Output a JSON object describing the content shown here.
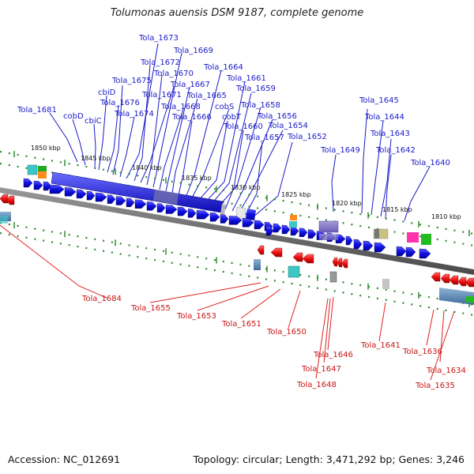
{
  "title": "Tolumonas auensis DSM 9187, complete genome",
  "footer": {
    "accession": "Accession: NC_012691",
    "summary": "Topology: circular; Length: 3,471,292 bp; Genes: 3,246"
  },
  "colors": {
    "upper_labels": "#1a1ac8",
    "lower_labels": "#c81414",
    "forward_genes": "#1414dc",
    "reverse_genes": "#e01414",
    "backbone": "#6e6e6e",
    "ticks": "#2e8b2e"
  },
  "ticks": [
    {
      "label": "1850 kbp"
    },
    {
      "label": "1845 kbp"
    },
    {
      "label": "1840 kbp"
    },
    {
      "label": "1835 kbp"
    },
    {
      "label": "1830 kbp"
    },
    {
      "label": "1825 kbp"
    },
    {
      "label": "1820 kbp"
    },
    {
      "label": "1815 kbp"
    },
    {
      "label": "1810 kbp"
    }
  ],
  "upper_labels": [
    "Tola_1673",
    "Tola_1669",
    "Tola_1672",
    "Tola_1670",
    "Tola_1664",
    "Tola_1675",
    "Tola_1667",
    "Tola_1661",
    "cbiD",
    "Tola_1671",
    "Tola_1665",
    "Tola_1659",
    "Tola_1676",
    "Tola_1668",
    "cobS",
    "Tola_1658",
    "Tola_1681",
    "cobD",
    "Tola_1674",
    "Tola_1666",
    "cobT",
    "Tola_1656",
    "cbiC",
    "Tola_1660",
    "Tola_1654",
    "Tola_1657",
    "Tola_1652",
    "Tola_1645",
    "Tola_1644",
    "Tola_1643",
    "Tola_1649",
    "Tola_1642",
    "Tola_1640"
  ],
  "lower_labels": [
    "Tola_1684",
    "Tola_1655",
    "Tola_1653",
    "Tola_1651",
    "Tola_1650",
    "Tola_1646",
    "Tola_1641",
    "Tola_1636",
    "Tola_1647",
    "Tola_1634",
    "Tola_1648",
    "Tola_1635"
  ]
}
